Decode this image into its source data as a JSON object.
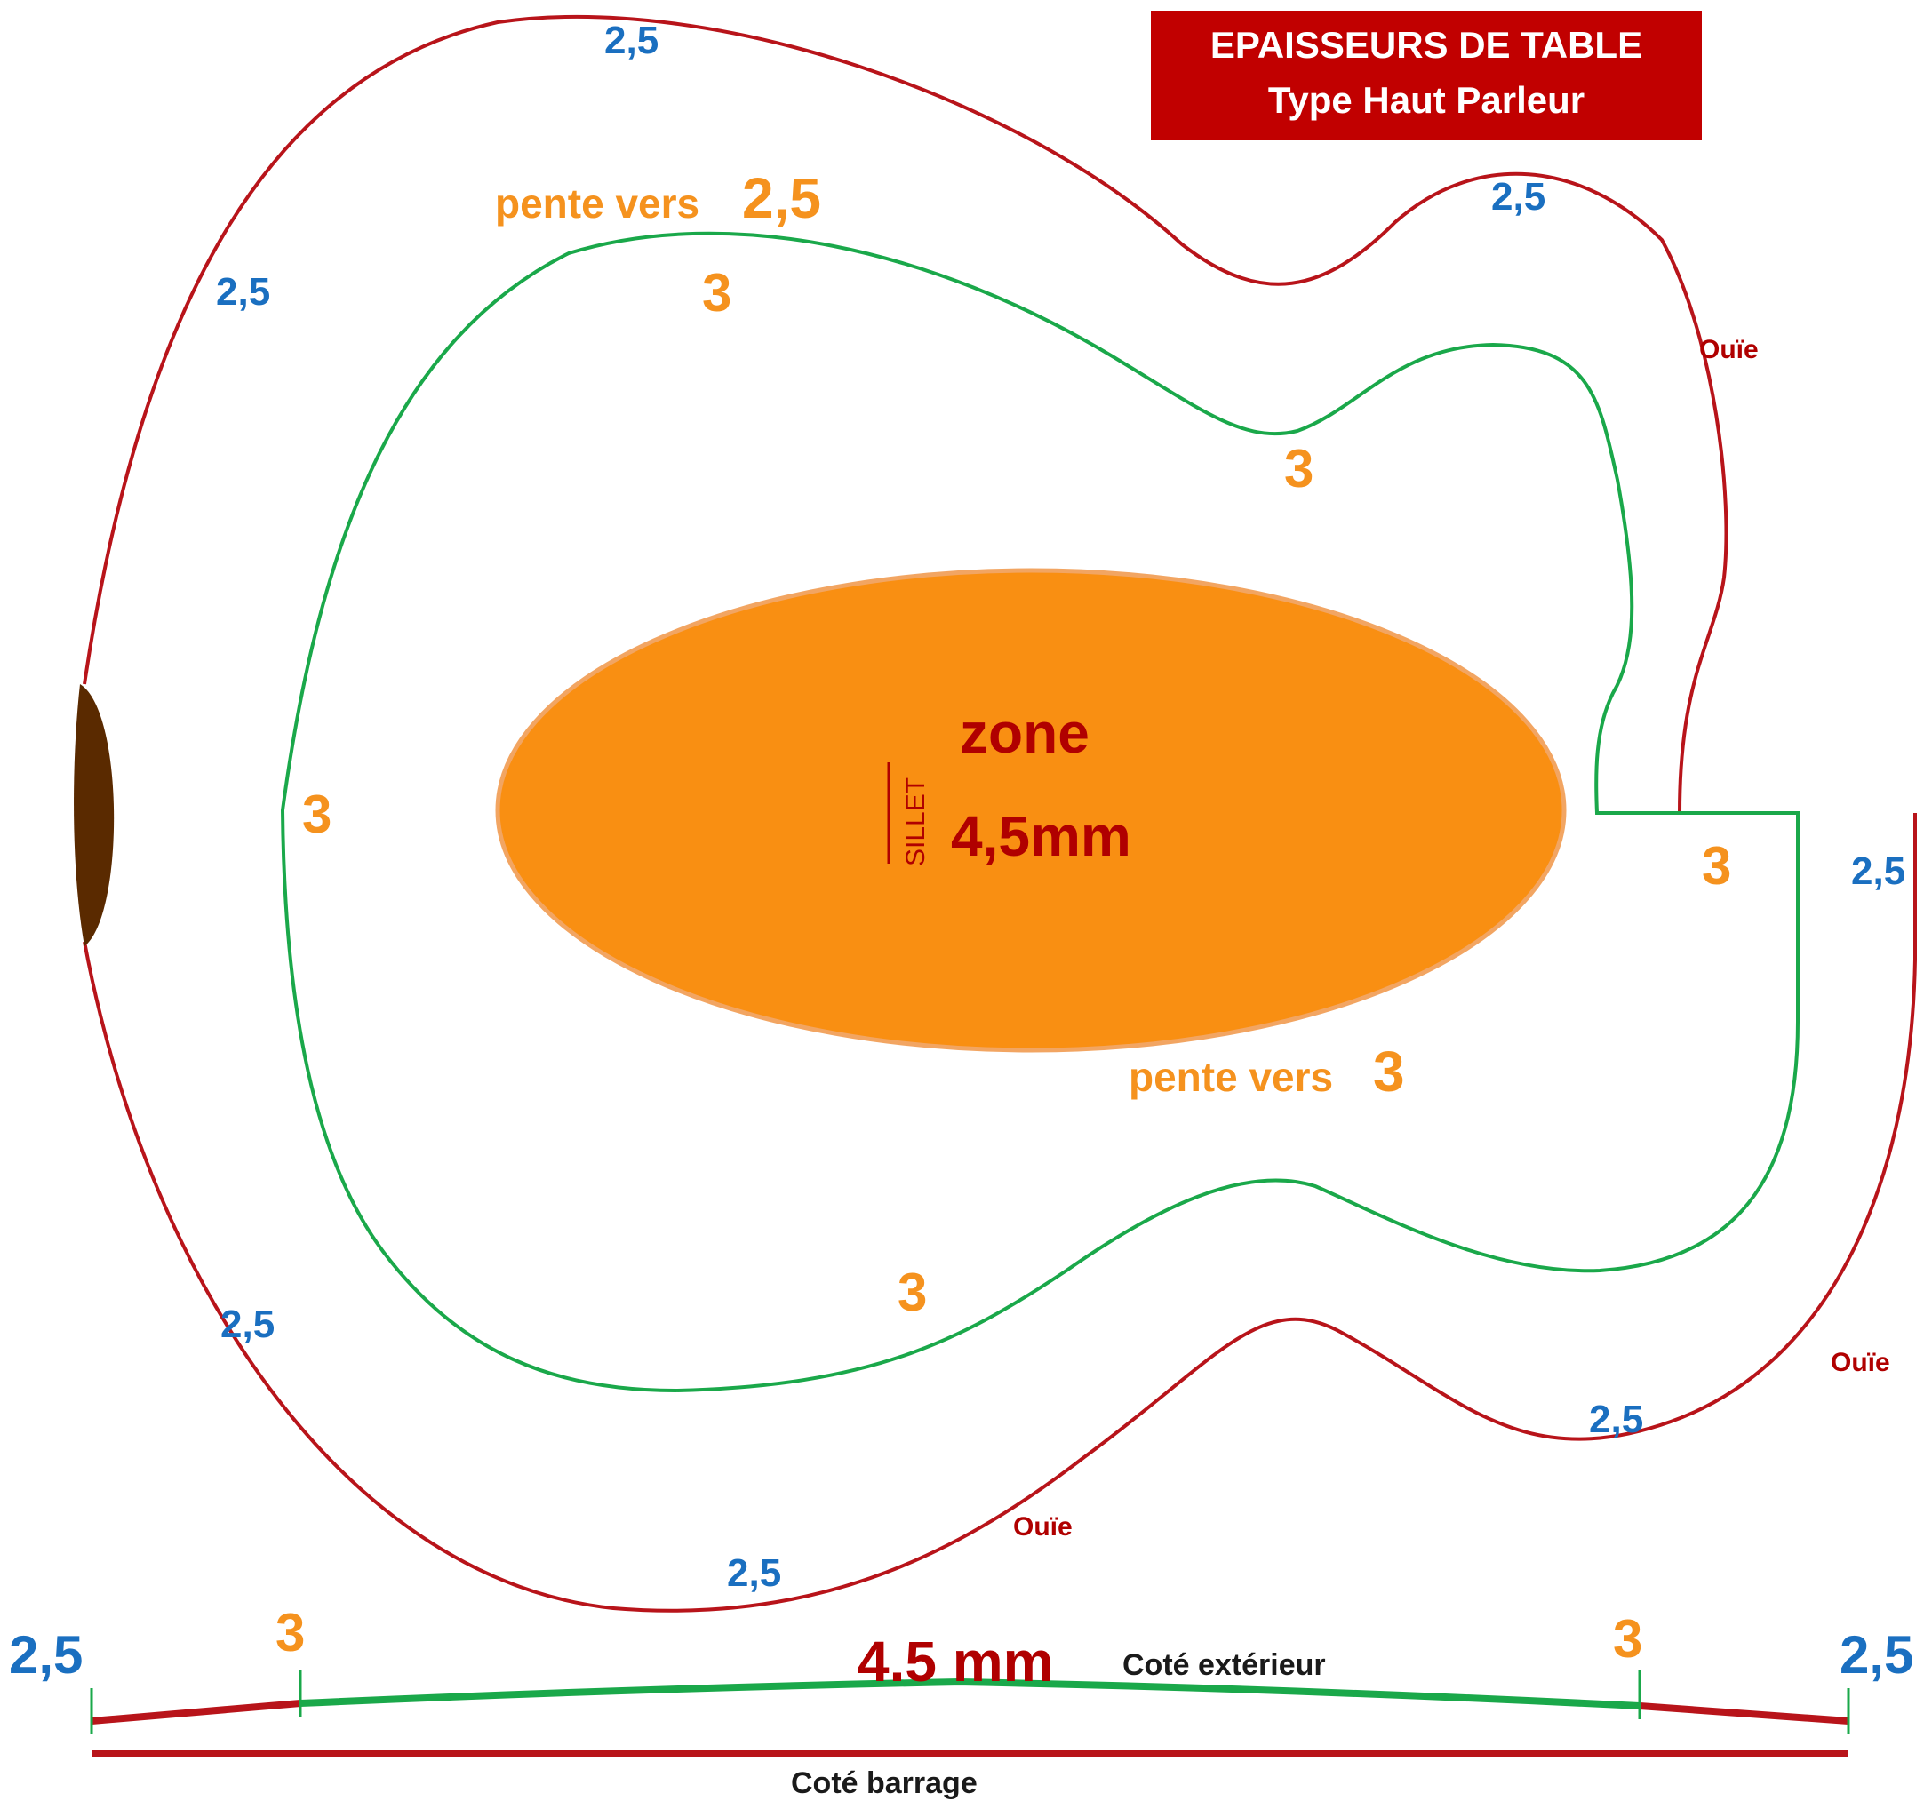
{
  "title": {
    "line1": "EPAISSEURS DE TABLE",
    "line2": "Type Haut Parleur"
  },
  "colors": {
    "outline": "#b8141a",
    "inner_contour": "#1aa84a",
    "center_zone": "#f98f12",
    "title_bg": "#c10000",
    "neck_edge": "#5a2a00",
    "blue_text": "#1a6fc0",
    "orange_text": "#f5921e",
    "dark_red_text": "#b00000"
  },
  "labels": {
    "edge_value": "2,5",
    "inner_value": "3",
    "slope_to": "pente vers",
    "slope_to_25": "2,5",
    "slope_to_3": "3",
    "sound_hole": "Ouïe",
    "zone_word": "zone",
    "zone_value": "4,5mm",
    "saddle": "SILLET"
  },
  "cross_section": {
    "left_edge": "2,5",
    "left_mid": "3",
    "center": "4.5 mm",
    "right_mid": "3",
    "right_edge": "2,5",
    "outer_side": "Coté extérieur",
    "bracing_side": "Coté barrage"
  }
}
